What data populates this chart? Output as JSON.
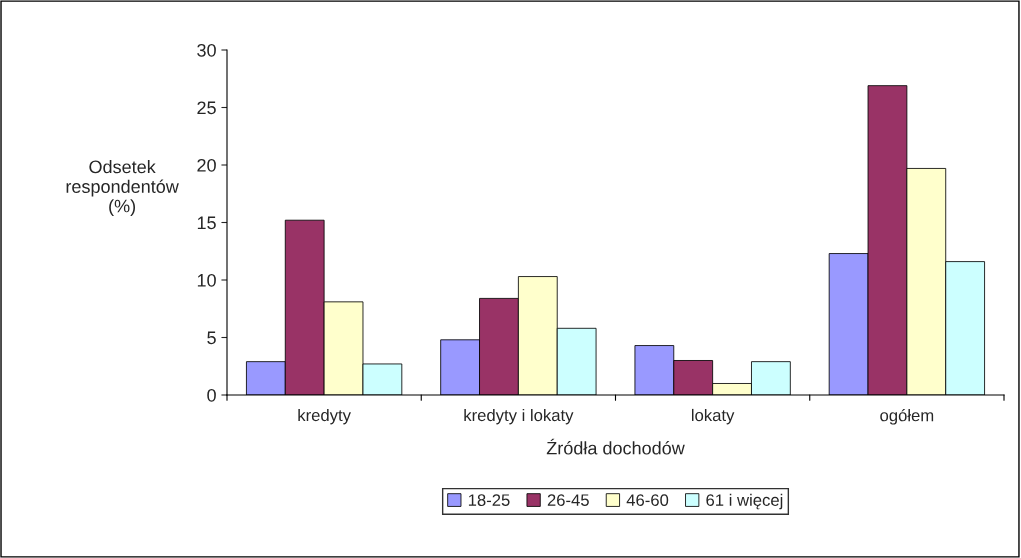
{
  "chart_data": {
    "type": "bar",
    "xlabel": "Źródła dochodów",
    "ylabel": "Odsetek\nrespondentów\n(%)",
    "categories": [
      "kredyty",
      "kredyty i lokaty",
      "lokaty",
      "ogółem"
    ],
    "series": [
      {
        "name": "18-25",
        "color": "#9999ff",
        "values": [
          2.9,
          4.8,
          4.3,
          12.3
        ]
      },
      {
        "name": "26-45",
        "color": "#993366",
        "values": [
          15.2,
          8.4,
          3.0,
          26.9
        ]
      },
      {
        "name": "46-60",
        "color": "#ffffcc",
        "values": [
          8.1,
          10.3,
          1.0,
          19.7
        ]
      },
      {
        "name": "61 i więcej",
        "color": "#ccffff",
        "values": [
          2.7,
          5.8,
          2.9,
          11.6
        ]
      }
    ],
    "ylim": [
      0,
      30
    ],
    "yticks": [
      0,
      5,
      10,
      15,
      20,
      25,
      30
    ],
    "grid": false,
    "legend": "bottom"
  }
}
